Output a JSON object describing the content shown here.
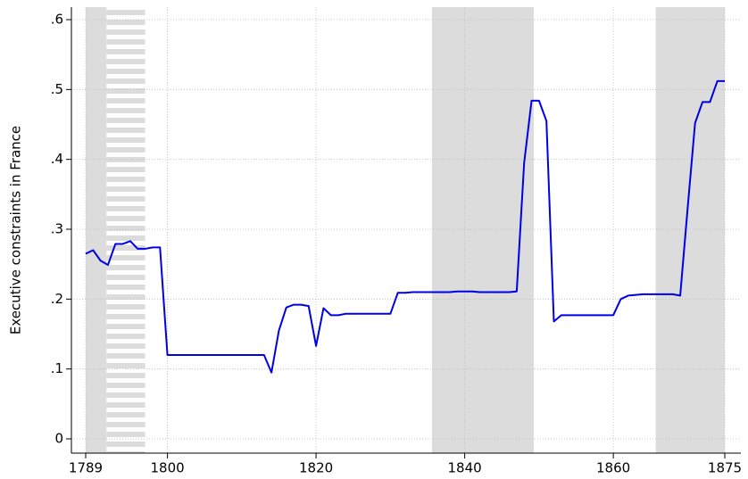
{
  "chart_data": {
    "type": "line",
    "ylabel": "Executive constraints in France",
    "x": [
      1789,
      1790,
      1791,
      1792,
      1793,
      1794,
      1795,
      1796,
      1797,
      1798,
      1799,
      1800,
      1801,
      1802,
      1803,
      1804,
      1805,
      1806,
      1807,
      1808,
      1809,
      1810,
      1811,
      1812,
      1813,
      1814,
      1815,
      1816,
      1817,
      1818,
      1819,
      1820,
      1821,
      1822,
      1823,
      1824,
      1825,
      1826,
      1827,
      1828,
      1829,
      1830,
      1831,
      1832,
      1833,
      1834,
      1835,
      1836,
      1837,
      1838,
      1839,
      1840,
      1841,
      1842,
      1843,
      1844,
      1845,
      1846,
      1847,
      1848,
      1849,
      1850,
      1851,
      1852,
      1853,
      1854,
      1855,
      1856,
      1857,
      1858,
      1859,
      1860,
      1861,
      1862,
      1863,
      1864,
      1865,
      1866,
      1867,
      1868,
      1869,
      1870,
      1871,
      1872,
      1873,
      1874,
      1875
    ],
    "series": [
      {
        "color": "#0000e6",
        "values": [
          0.265,
          0.27,
          0.255,
          0.249,
          0.279,
          0.279,
          0.283,
          0.272,
          0.272,
          0.274,
          0.274,
          0.12,
          0.12,
          0.12,
          0.12,
          0.12,
          0.12,
          0.12,
          0.12,
          0.12,
          0.12,
          0.12,
          0.12,
          0.12,
          0.12,
          0.095,
          0.155,
          0.188,
          0.192,
          0.192,
          0.19,
          0.133,
          0.187,
          0.177,
          0.177,
          0.179,
          0.179,
          0.179,
          0.179,
          0.179,
          0.179,
          0.179,
          0.209,
          0.209,
          0.21,
          0.21,
          0.21,
          0.21,
          0.21,
          0.21,
          0.211,
          0.211,
          0.211,
          0.21,
          0.21,
          0.21,
          0.21,
          0.21,
          0.211,
          0.395,
          0.484,
          0.484,
          0.455,
          0.168,
          0.177,
          0.177,
          0.177,
          0.177,
          0.177,
          0.177,
          0.177,
          0.177,
          0.2,
          0.205,
          0.206,
          0.207,
          0.207,
          0.207,
          0.207,
          0.207,
          0.205,
          0.33,
          0.452,
          0.482,
          0.482,
          0.512,
          0.512
        ]
      }
    ],
    "shaded_periods": [
      {
        "start": 1789,
        "end": 1791.8,
        "pattern": "solid"
      },
      {
        "start": 1791.8,
        "end": 1797,
        "pattern": "striped"
      },
      {
        "start": 1835.6,
        "end": 1849.3,
        "pattern": "solid"
      },
      {
        "start": 1865.7,
        "end": 1875,
        "pattern": "solid"
      }
    ],
    "shade_color": "#dcdcdc",
    "xlim": [
      1789,
      1875
    ],
    "xticks": [
      1789,
      1800,
      1820,
      1840,
      1860,
      1875
    ],
    "ylim": [
      0,
      0.6
    ],
    "yticks": [
      0,
      {
        "value": 0.1,
        "label": ".1"
      },
      {
        "value": 0.2,
        "label": ".2"
      },
      {
        "value": 0.3,
        "label": ".3"
      },
      {
        "value": 0.4,
        "label": ".4"
      },
      {
        "value": 0.5,
        "label": ".5"
      },
      {
        "value": 0.6,
        "label": ".6"
      }
    ],
    "grid": true
  }
}
